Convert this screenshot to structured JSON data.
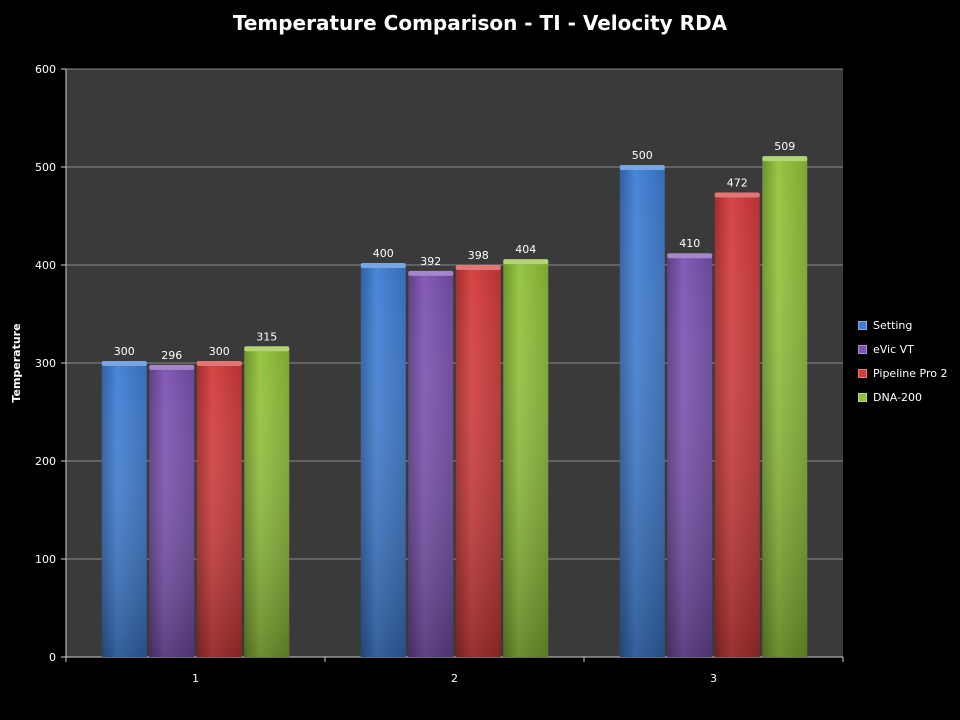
{
  "chart_data": {
    "type": "bar",
    "title": "Temperature Comparison - TI - Velocity RDA",
    "xlabel": "",
    "ylabel": "Temperature",
    "categories": [
      "1",
      "2",
      "3"
    ],
    "series": [
      {
        "name": "Setting",
        "values": [
          300,
          400,
          500
        ],
        "color": "#3f7fd6"
      },
      {
        "name": "eVic VT",
        "values": [
          296,
          392,
          410
        ],
        "color": "#7d52b3"
      },
      {
        "name": "Pipeline Pro 2",
        "values": [
          300,
          398,
          472
        ],
        "color": "#d53b3b"
      },
      {
        "name": "DNA-200",
        "values": [
          315,
          404,
          509
        ],
        "color": "#92c33a"
      }
    ],
    "ylim": [
      0,
      600
    ],
    "yticks": [
      "0",
      "100",
      "200",
      "300",
      "400",
      "500",
      "600"
    ],
    "grid": true,
    "legend": "right",
    "data_labels": true,
    "plot_background": "#3a3a3a"
  }
}
